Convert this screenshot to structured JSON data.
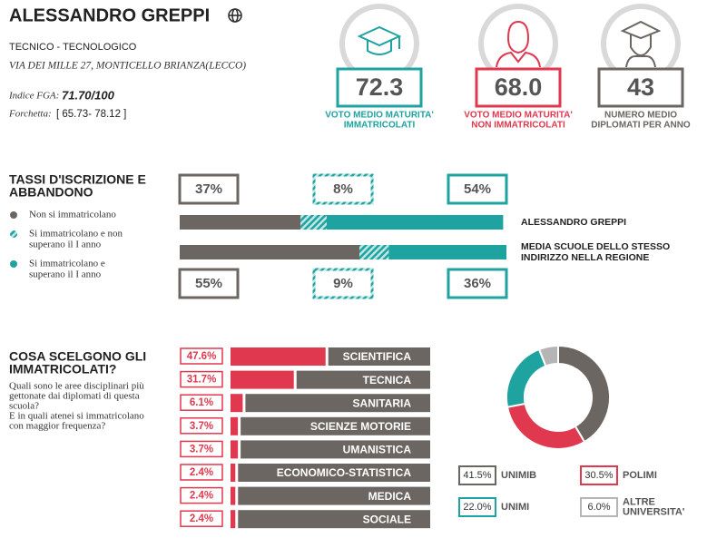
{
  "header": {
    "title": "ALESSANDRO GREPPI",
    "school_type": "TECNICO - TECNOLOGICO",
    "address": "VIA DEI MILLE 27, MONTICELLO BRIANZA(LECCO)",
    "fga_label": "Indice FGA:",
    "fga_value": "71.70/100",
    "range_label": "Forchetta:",
    "range_value": "[ 65.73- 78.12 ]"
  },
  "kpis": [
    {
      "value": "72.3",
      "label": [
        "VOTO MEDIO MATURITA'",
        "IMMATRICOLATI"
      ],
      "color": "#1fa3a0"
    },
    {
      "value": "68.0",
      "label": [
        "VOTO MEDIO MATURITA'",
        "NON IMMATRICOLATI"
      ],
      "color": "#e0394f"
    },
    {
      "value": "43",
      "label": [
        "NUMERO MEDIO",
        "DIPLOMATI PER ANNO"
      ],
      "color": "#6b6661"
    }
  ],
  "enrollment": {
    "title": [
      "TASSI D'ISCRIZIONE E",
      "ABBANDONO"
    ],
    "legend": [
      {
        "label": [
          "Non si immatricolano"
        ],
        "color": "#6b6661",
        "striped": false
      },
      {
        "label": [
          "Si immatricolano e non",
          "superano il I anno"
        ],
        "color": "#1fa3a0",
        "striped": true
      },
      {
        "label": [
          "Si immatricolano e",
          "superano il I anno"
        ],
        "color": "#1fa3a0",
        "striped": false
      }
    ],
    "rows": [
      {
        "name": [
          "ALESSANDRO GREPPI"
        ],
        "values": [
          37,
          8,
          54
        ],
        "value_labels": [
          "37%",
          "8%",
          "54%"
        ]
      },
      {
        "name": [
          "MEDIA SCUOLE DELLO STESSO",
          "INDIRIZZO NELLA REGIONE"
        ],
        "values": [
          55,
          9,
          36
        ],
        "value_labels": [
          "55%",
          "9%",
          "36%"
        ]
      }
    ]
  },
  "choices": {
    "title": [
      "COSA SCELGONO GLI",
      "IMMATRICOLATI?"
    ],
    "description": [
      "Quali sono le aree disciplinari più",
      "gettonate dai diplomati di questa",
      "scuola?",
      "E in quali atenei si immatricolano",
      "con maggior frequenza?"
    ],
    "areas": {
      "categories": [
        "SCIENTIFICA",
        "TECNICA",
        "SANITARIA",
        "SCIENZE MOTORIE",
        "UMANISTICA",
        "ECONOMICO-STATISTICA",
        "MEDICA",
        "SOCIALE"
      ],
      "values": [
        47.6,
        31.7,
        6.1,
        3.7,
        3.7,
        2.4,
        2.4,
        2.4
      ],
      "value_labels": [
        "47.6%",
        "31.7%",
        "6.1%",
        "3.7%",
        "3.7%",
        "2.4%",
        "2.4%",
        "2.4%"
      ],
      "xlim": [
        0,
        100
      ],
      "color": "#e0394f"
    },
    "universities": {
      "categories": [
        [
          "UNIMIB"
        ],
        [
          "POLIMI"
        ],
        [
          "UNIMI"
        ],
        [
          "ALTRE",
          "UNIVERSITA'"
        ]
      ],
      "values": [
        41.5,
        30.5,
        22.0,
        6.0
      ],
      "value_labels": [
        "41.5%",
        "30.5%",
        "22.0%",
        "6.0%"
      ],
      "colors": [
        "#6b6661",
        "#e0394f",
        "#1fa3a0",
        "#b5b5b5"
      ]
    }
  }
}
